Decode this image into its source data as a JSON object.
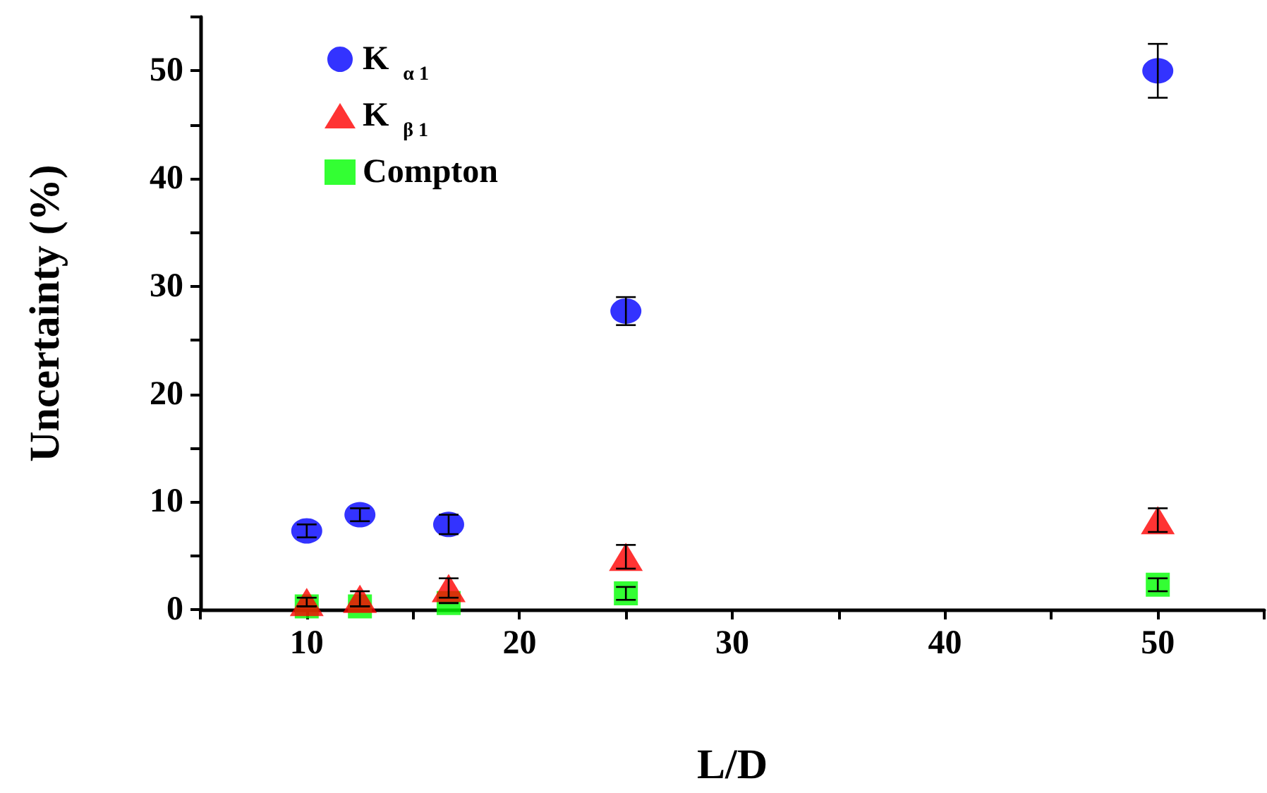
{
  "chart_data": {
    "type": "scatter",
    "xlabel": "L/D",
    "ylabel": "Uncertainty (%)",
    "x": [
      10,
      12.5,
      16.67,
      25,
      50
    ],
    "series": [
      {
        "name": "K $_{α 1}$",
        "color": "#0000ff",
        "marker": "circle",
        "values": [
          7.3,
          8.8,
          7.9,
          27.7,
          50
        ],
        "errors": [
          0.6,
          0.6,
          0.9,
          1.3,
          2.5
        ]
      },
      {
        "name": "K $_{β 1}$",
        "color": "#ff0000",
        "marker": "triangle",
        "values": [
          0.7,
          1.0,
          2.0,
          4.9,
          8.3
        ],
        "errors": [
          0.4,
          0.7,
          0.9,
          1.1,
          1.1
        ]
      },
      {
        "name": "Compton",
        "color": "#00ff00",
        "marker": "square",
        "values": [
          0.3,
          0.3,
          0.6,
          1.5,
          2.3
        ],
        "errors": [
          null,
          null,
          null,
          0.6,
          0.6
        ]
      }
    ],
    "xlim": [
      5,
      55
    ],
    "xticks": [
      10,
      20,
      30,
      40,
      50
    ],
    "ylim": [
      0,
      55
    ],
    "yticks": [
      0,
      10,
      20,
      30,
      40,
      50
    ],
    "grid": false,
    "legend": "top left"
  }
}
